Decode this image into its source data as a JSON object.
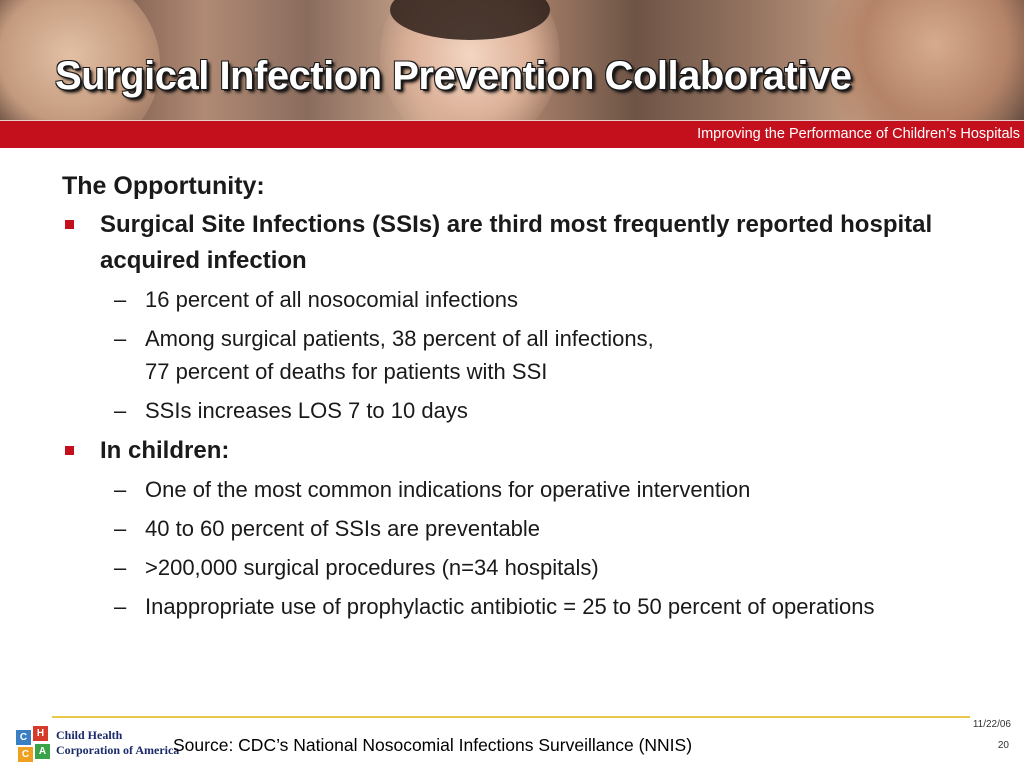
{
  "header": {
    "title": "Surgical Infection Prevention Collaborative",
    "tagline": "Improving the Performance of Children’s Hospitals"
  },
  "content": {
    "heading": "The Opportunity:",
    "bullets": [
      {
        "text": "Surgical Site Infections (SSIs) are third most frequently reported hospital acquired infection",
        "subs": [
          "16 percent of all nosocomial infections",
          "Among surgical patients, 38 percent of all infections,",
          "77 percent of deaths for patients with SSI",
          "SSIs increases LOS 7 to 10 days"
        ]
      },
      {
        "text": "In children:",
        "subs": [
          "One of the most common indications for operative intervention",
          "40 to 60 percent of SSIs are preventable",
          ">200,000 surgical procedures (n=34 hospitals)",
          "Inappropriate use of prophylactic antibiotic = 25 to 50 percent of operations"
        ]
      }
    ]
  },
  "footer": {
    "logo_letters": [
      "C",
      "H",
      "C",
      "A"
    ],
    "org_line1": "Child Health",
    "org_line2": "Corporation of America",
    "source": "Source: CDC’s National Nosocomial Infections Surveillance (NNIS)",
    "date": "11/22/06",
    "page": "20"
  },
  "colors": {
    "accent_red": "#c4101c",
    "footer_rule": "#e8c84a"
  }
}
